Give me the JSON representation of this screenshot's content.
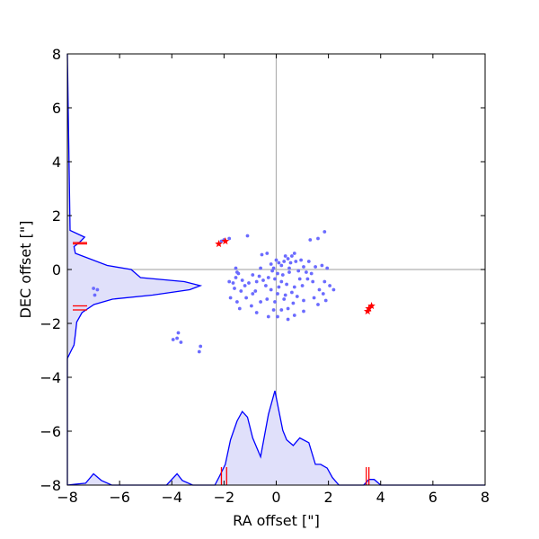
{
  "chart_data": {
    "type": "scatter",
    "xlabel": "RA offset [\"]",
    "ylabel": "DEC offset [\"]",
    "xlim": [
      -8,
      8
    ],
    "ylim": [
      -8,
      8
    ],
    "xticks": [
      -8,
      -6,
      -4,
      -2,
      0,
      2,
      4,
      6,
      8
    ],
    "yticks": [
      -8,
      -6,
      -4,
      -2,
      0,
      2,
      4,
      6,
      8
    ],
    "xtick_labels": [
      "−8",
      "−6",
      "−4",
      "−2",
      "0",
      "2",
      "4",
      "6",
      "8"
    ],
    "ytick_labels": [
      "−8",
      "−6",
      "−4",
      "−2",
      "0",
      "2",
      "4",
      "6",
      "8"
    ],
    "grid": false,
    "zero_lines": true,
    "colors": {
      "points": "#6b6bff",
      "stars": "#ff0000",
      "kde": "#0000ff",
      "kde_fill": "#e0e0fa",
      "zero_line": "#b0b0b0"
    },
    "points": [
      [
        -1.8,
        1.15
      ],
      [
        -2.0,
        1.1
      ],
      [
        -2.1,
        1.05
      ],
      [
        -1.1,
        1.25
      ],
      [
        -0.55,
        0.55
      ],
      [
        -0.35,
        0.6
      ],
      [
        1.3,
        1.1
      ],
      [
        1.6,
        1.15
      ],
      [
        1.85,
        1.4
      ],
      [
        0.1,
        0.25
      ],
      [
        0.3,
        0.3
      ],
      [
        0.45,
        0.4
      ],
      [
        0.6,
        0.5
      ],
      [
        0.55,
        0.25
      ],
      [
        0.75,
        0.3
      ],
      [
        0.95,
        0.35
      ],
      [
        0.2,
        0.15
      ],
      [
        -0.1,
        0.05
      ],
      [
        -0.15,
        -0.05
      ],
      [
        0.05,
        -0.15
      ],
      [
        0.25,
        -0.2
      ],
      [
        0.5,
        -0.1
      ],
      [
        0.85,
        -0.05
      ],
      [
        1.15,
        -0.1
      ],
      [
        1.35,
        -0.15
      ],
      [
        1.5,
        0.1
      ],
      [
        1.75,
        0.15
      ],
      [
        1.95,
        0.05
      ],
      [
        1.4,
        -0.45
      ],
      [
        1.85,
        -0.45
      ],
      [
        2.05,
        -0.6
      ],
      [
        2.2,
        -0.75
      ],
      [
        1.65,
        -0.75
      ],
      [
        1.8,
        -0.9
      ],
      [
        1.45,
        -1.05
      ],
      [
        1.9,
        -1.15
      ],
      [
        1.6,
        -1.3
      ],
      [
        1.2,
        -0.35
      ],
      [
        0.9,
        -0.35
      ],
      [
        1.0,
        -0.6
      ],
      [
        0.7,
        -0.65
      ],
      [
        1.05,
        -1.15
      ],
      [
        1.05,
        -1.55
      ],
      [
        0.65,
        -1.25
      ],
      [
        0.7,
        -1.7
      ],
      [
        0.45,
        -1.45
      ],
      [
        0.45,
        -1.85
      ],
      [
        0.2,
        -1.5
      ],
      [
        0.05,
        -1.75
      ],
      [
        -0.1,
        -1.5
      ],
      [
        -0.3,
        -1.75
      ],
      [
        -0.35,
        -1.1
      ],
      [
        -0.6,
        -1.2
      ],
      [
        -0.8,
        -0.8
      ],
      [
        -0.4,
        -0.6
      ],
      [
        -0.2,
        -0.75
      ],
      [
        0.1,
        -0.65
      ],
      [
        0.2,
        -0.45
      ],
      [
        0.4,
        -0.55
      ],
      [
        -0.05,
        -0.35
      ],
      [
        -0.3,
        -0.3
      ],
      [
        -0.5,
        -0.4
      ],
      [
        -0.75,
        -0.45
      ],
      [
        -0.9,
        -0.2
      ],
      [
        -0.6,
        0.05
      ],
      [
        -1.05,
        -0.5
      ],
      [
        -1.3,
        -0.4
      ],
      [
        -1.55,
        -0.3
      ],
      [
        -1.8,
        -0.45
      ],
      [
        -1.6,
        -0.7
      ],
      [
        -1.35,
        -0.8
      ],
      [
        -1.15,
        -1.05
      ],
      [
        -1.5,
        -1.2
      ],
      [
        -1.75,
        -1.05
      ],
      [
        -1.4,
        -1.45
      ],
      [
        -0.95,
        -1.35
      ],
      [
        -0.75,
        -1.6
      ],
      [
        -1.45,
        -0.15
      ],
      [
        -1.55,
        0.05
      ],
      [
        -1.5,
        -0.1
      ],
      [
        -1.65,
        -0.5
      ],
      [
        -1.2,
        -0.6
      ],
      [
        -0.9,
        -0.9
      ],
      [
        -0.65,
        -0.25
      ],
      [
        0.05,
        -0.9
      ],
      [
        0.35,
        -0.95
      ],
      [
        0.6,
        -0.85
      ],
      [
        0.8,
        -1.0
      ],
      [
        -0.05,
        -1.2
      ],
      [
        0.3,
        -1.1
      ],
      [
        0.5,
        0.05
      ],
      [
        0.35,
        0.5
      ],
      [
        0.7,
        0.6
      ],
      [
        0.0,
        0.35
      ],
      [
        -0.2,
        0.2
      ],
      [
        1.05,
        0.1
      ],
      [
        1.25,
        0.3
      ],
      [
        -7.0,
        -0.7
      ],
      [
        -6.85,
        -0.75
      ],
      [
        -6.95,
        -0.95
      ],
      [
        -3.75,
        -2.35
      ],
      [
        -3.8,
        -2.55
      ],
      [
        -3.65,
        -2.7
      ],
      [
        -3.95,
        -2.6
      ],
      [
        -2.9,
        -2.85
      ],
      [
        -2.95,
        -3.05
      ]
    ],
    "stars": [
      [
        -2.2,
        0.95
      ],
      [
        -1.95,
        1.05
      ],
      [
        3.55,
        -1.45
      ],
      [
        3.65,
        -1.35
      ],
      [
        3.5,
        -1.55
      ]
    ],
    "kde_x": {
      "x": [
        -8.0,
        -7.7,
        -7.3,
        -7.0,
        -6.7,
        -6.3,
        -4.2,
        -3.8,
        -3.6,
        -3.2,
        -2.35,
        -2.2,
        -1.95,
        -1.75,
        -1.5,
        -1.3,
        -1.1,
        -0.9,
        -0.6,
        -0.3,
        -0.05,
        0.25,
        0.4,
        0.65,
        0.9,
        1.25,
        1.5,
        1.7,
        1.95,
        2.15,
        2.4,
        3.35,
        3.55,
        3.75,
        4.0,
        8.0
      ],
      "density": [
        0,
        0.01,
        0.02,
        0.12,
        0.05,
        0,
        0,
        0.12,
        0.05,
        0,
        0,
        0.08,
        0.22,
        0.48,
        0.68,
        0.78,
        0.72,
        0.5,
        0.3,
        0.75,
        1.0,
        0.58,
        0.48,
        0.42,
        0.5,
        0.45,
        0.22,
        0.22,
        0.18,
        0.08,
        0,
        0,
        0.06,
        0.06,
        0,
        0
      ]
    },
    "kde_y": {
      "y": [
        -8.0,
        -4.0,
        -3.3,
        -3.0,
        -2.8,
        -2.4,
        -1.95,
        -1.6,
        -1.3,
        -1.1,
        -0.95,
        -0.75,
        -0.6,
        -0.45,
        -0.3,
        0.0,
        0.15,
        0.6,
        0.85,
        1.0,
        1.2,
        1.45,
        8.0
      ],
      "density": [
        0,
        0,
        0,
        0.03,
        0.05,
        0.06,
        0.07,
        0.11,
        0.2,
        0.34,
        0.64,
        0.92,
        1.0,
        0.88,
        0.55,
        0.48,
        0.3,
        0.06,
        0.05,
        0.09,
        0.13,
        0.02,
        0
      ]
    },
    "rug_x": [
      -2.1,
      -1.9,
      3.45,
      3.55
    ],
    "rug_y": [
      1.0,
      0.95,
      -1.35,
      -1.5
    ]
  }
}
